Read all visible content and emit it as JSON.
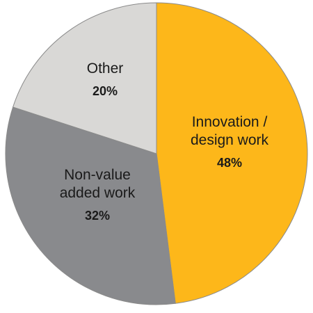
{
  "chart_data": {
    "type": "pie",
    "slices": [
      {
        "label_lines": [
          "Innovation /",
          "design work"
        ],
        "value": 48,
        "value_text": "48%",
        "color": "#FDB71A"
      },
      {
        "label_lines": [
          "Non-value",
          "added work"
        ],
        "value": 32,
        "value_text": "32%",
        "color": "#898A8D"
      },
      {
        "label_lines": [
          "Other"
        ],
        "value": 20,
        "value_text": "20%",
        "color": "#D9D8D6"
      }
    ],
    "start_angle_deg": 0,
    "direction": "clockwise",
    "legend": "none"
  }
}
